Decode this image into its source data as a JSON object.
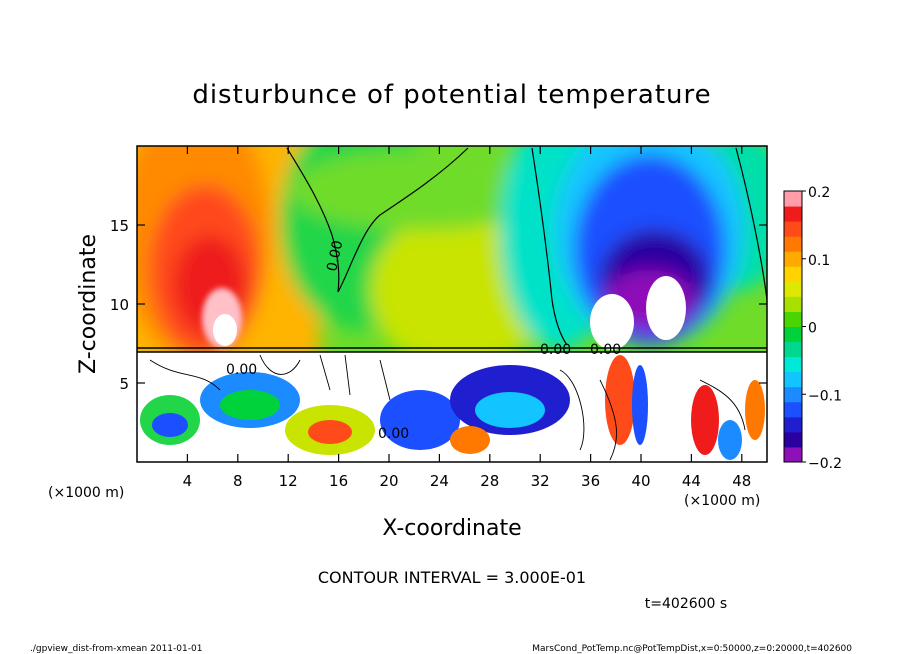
{
  "chart_data": {
    "type": "heatmap",
    "title": "disturbunce of potential temperature",
    "xlabel": "X-coordinate",
    "ylabel": "Z-coordinate",
    "x_unit": "(×1000 m)",
    "y_unit": "(×1000 m)",
    "xlim": [
      0,
      50
    ],
    "ylim": [
      0,
      20
    ],
    "x_ticks": [
      4,
      8,
      12,
      16,
      20,
      24,
      28,
      32,
      36,
      40,
      44,
      48
    ],
    "y_ticks": [
      5,
      10,
      15
    ],
    "colorbar": {
      "range": [
        -0.2,
        0.2
      ],
      "tick_values": [
        0.2,
        0.1,
        0,
        -0.1,
        -0.2
      ],
      "tick_labels": [
        "0.2",
        "0.1",
        "0",
        "−0.1",
        "−0.2"
      ],
      "colors": [
        "#8e10b8",
        "#2a00a0",
        "#1f1fd0",
        "#1c4fff",
        "#1b8bff",
        "#12c4ff",
        "#00e8d8",
        "#00d890",
        "#00d23c",
        "#4ad400",
        "#a8e000",
        "#dfe800",
        "#ffd200",
        "#ffaa00",
        "#ff7800",
        "#ff4a1a",
        "#f01c1c",
        "#ff9ea8"
      ]
    },
    "contour_labels": [
      "0.00",
      "0.00",
      "0.00",
      "0.00",
      "0.00"
    ],
    "contour_interval_text": "CONTOUR INTERVAL = 3.000E-01",
    "time_text": "t=402600 s",
    "grid": false
  },
  "footer": {
    "left": "./gpview_dist-from-xmean  2011-01-01",
    "right": "MarsCond_PotTemp.nc@PotTempDist,x=0:50000,z=0:20000,t=402600"
  }
}
